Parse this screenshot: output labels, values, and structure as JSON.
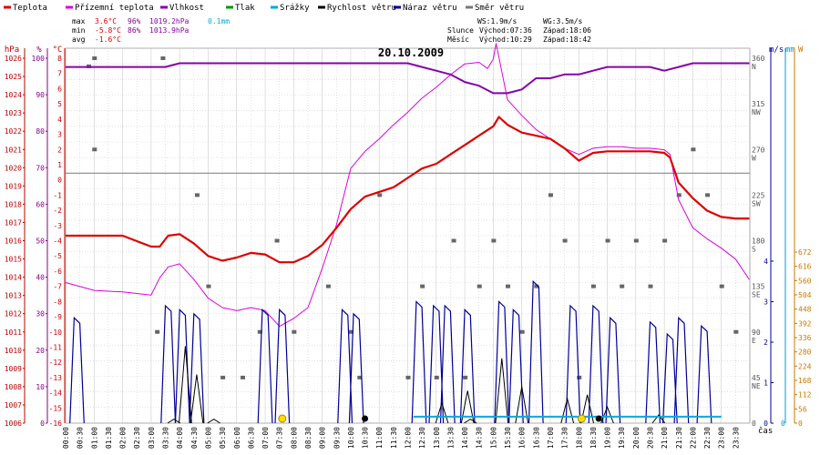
{
  "colors": {
    "teplota": "#dd0000",
    "pocitova": "#dd00dd",
    "vlhkost": "#8800aa",
    "tlak": "#009900",
    "srazky": "#00aadd",
    "vitr": "#000000",
    "naraz": "#000099",
    "smer": "#666666",
    "hpa_axis": "#bb0000",
    "pct_axis": "#880088",
    "c_axis": "#cc0000",
    "wind_axis": "#000099",
    "mm_axis": "#0099cc",
    "w_axis": "#cc7700",
    "grid": "#cccccc",
    "zero": "#888888"
  },
  "legend": [
    {
      "label": "Teplota",
      "color": "#dd0000"
    },
    {
      "label": "Přízemní teplota",
      "color": "#dd00dd"
    },
    {
      "label": "Vlhkost",
      "color": "#8800aa"
    },
    {
      "label": "Tlak",
      "color": "#009900"
    },
    {
      "label": "Srážky",
      "color": "#00aadd"
    },
    {
      "label": "Rychlost větru",
      "color": "#000000"
    },
    {
      "label": "Náraz větru",
      "color": "#000099"
    },
    {
      "label": "Směr větru",
      "color": "#777777"
    }
  ],
  "stats": {
    "max_label": "max",
    "max_temp": "3.6°C",
    "max_hum": "96%",
    "max_press": "1019.2hPa",
    "rain": "0.1mm",
    "min_label": "min",
    "min_temp": "-5.8°C",
    "min_hum": "86%",
    "min_press": "1013.9hPa",
    "avg_label": "avg",
    "avg_temp": "-1.6°C"
  },
  "wind_info": {
    "ws": "WS:1.9m/s",
    "wg": "WG:3.5m/s"
  },
  "sun_moon": {
    "sun_label": "Slunce",
    "sun_rise": "Východ:07:36",
    "sun_set": "Západ:18:06",
    "moon_label": "Měsíc",
    "moon_rise": "Východ:10:29",
    "moon_set": "Západ:18:42"
  },
  "chart_data": {
    "type": "line",
    "title": "20.10.2009",
    "xlabel": "čas",
    "x_ticks": [
      "00:00",
      "00:30",
      "01:00",
      "01:30",
      "02:00",
      "02:30",
      "03:00",
      "03:30",
      "04:00",
      "04:30",
      "05:00",
      "05:30",
      "06:00",
      "06:30",
      "07:00",
      "07:30",
      "08:00",
      "08:30",
      "09:00",
      "09:30",
      "10:00",
      "10:30",
      "11:00",
      "11:30",
      "12:00",
      "12:30",
      "13:00",
      "13:30",
      "14:00",
      "14:30",
      "15:00",
      "15:30",
      "16:00",
      "16:30",
      "17:00",
      "17:30",
      "18:00",
      "18:30",
      "19:00",
      "19:30",
      "20:00",
      "20:30",
      "21:00",
      "21:30",
      "22:00",
      "22:30",
      "23:00",
      "23:30"
    ],
    "axes": {
      "hpa": {
        "label": "hPa",
        "range": [
          1006,
          1026
        ],
        "ticks": [
          "1026",
          "1025",
          "1024",
          "1023",
          "1022",
          "1021",
          "1020",
          "1019",
          "1018",
          "1017",
          "1016",
          "1015",
          "1014",
          "1013",
          "1012",
          "1011",
          "1010",
          "1009",
          "1008",
          "1007",
          "1006"
        ]
      },
      "pct": {
        "label": "%",
        "range": [
          0,
          100
        ],
        "ticks": [
          "100",
          "90",
          "80",
          "70",
          "60",
          "50",
          "40",
          "30",
          "20",
          "10",
          "0"
        ]
      },
      "temp": {
        "label": "°C",
        "range": [
          -16,
          8
        ],
        "ticks": [
          "8",
          "7",
          "6",
          "5",
          "4",
          "3",
          "2",
          "1",
          "0",
          "-1",
          "-2",
          "-3",
          "-4",
          "-5",
          "-6",
          "-7",
          "-8",
          "-9",
          "-10",
          "-11",
          "-12",
          "-13",
          "-14",
          "-15",
          "-16"
        ]
      },
      "dir": {
        "label": "°",
        "range": [
          0,
          360
        ],
        "ticks": [
          "360",
          "315",
          "270",
          "225",
          "180",
          "135",
          "90",
          "45",
          "0"
        ],
        "names": [
          "N",
          "NW",
          "W",
          "SW",
          "S",
          "SE",
          "E",
          "NE",
          ""
        ]
      },
      "wind": {
        "label": "m/s",
        "range": [
          0,
          4
        ],
        "ticks": [
          "4",
          "3",
          "2",
          "1",
          "0"
        ]
      },
      "mm": {
        "label": "mm",
        "range": [
          0,
          1
        ]
      },
      "w": {
        "label": "W",
        "range": [
          0,
          672
        ],
        "ticks": [
          "672",
          "616",
          "560",
          "504",
          "448",
          "392",
          "336",
          "280",
          "224",
          "168",
          "112",
          "56",
          "0"
        ]
      }
    },
    "series": [
      {
        "name": "Teplota",
        "unit": "°C",
        "x": [
          0,
          1,
          2,
          3,
          3.3,
          3.6,
          4,
          4.5,
          5,
          5.5,
          6,
          6.5,
          7,
          7.5,
          8,
          8.5,
          9,
          9.5,
          10,
          10.5,
          11,
          11.5,
          12,
          12.5,
          13,
          13.5,
          14,
          14.5,
          15,
          15.2,
          15.5,
          16,
          16.5,
          17,
          17.5,
          18,
          18.5,
          19,
          19.5,
          20,
          20.5,
          21,
          21.2,
          21.5,
          22,
          22.5,
          23,
          23.5,
          23.98
        ],
        "y": [
          -4,
          -4,
          -4,
          -4.7,
          -4.7,
          -4,
          -3.9,
          -4.5,
          -5.3,
          -5.6,
          -5.4,
          -5.1,
          -5.2,
          -5.7,
          -5.7,
          -5.3,
          -4.6,
          -3.5,
          -2.3,
          -1.5,
          -1.2,
          -0.9,
          -0.3,
          0.3,
          0.6,
          1.2,
          1.8,
          2.4,
          3,
          3.6,
          3.1,
          2.6,
          2.4,
          2.2,
          1.6,
          0.8,
          1.3,
          1.4,
          1.4,
          1.4,
          1.4,
          1.3,
          1.0,
          -0.6,
          -1.6,
          -2.4,
          -2.8,
          -2.9,
          -2.9
        ]
      },
      {
        "name": "Přízemní teplota",
        "unit": "°C",
        "x": [
          0,
          1,
          2,
          3,
          3.3,
          3.6,
          4,
          4.5,
          5,
          5.5,
          6,
          6.5,
          7,
          7.5,
          8,
          8.5,
          9,
          9.5,
          10,
          10.5,
          11,
          11.5,
          12,
          12.5,
          13,
          13.5,
          14,
          14.5,
          14.8,
          15,
          15.1,
          15.3,
          15.5,
          16,
          16.5,
          17,
          17.5,
          18,
          18.5,
          19,
          19.5,
          20,
          20.5,
          21,
          21.2,
          21.5,
          22,
          22.5,
          23,
          23.5,
          23.98
        ],
        "y": [
          -7,
          -7.5,
          -7.6,
          -7.8,
          -6.7,
          -6,
          -5.8,
          -6.8,
          -8,
          -8.6,
          -8.8,
          -8.6,
          -8.8,
          -9.8,
          -9.3,
          -8.6,
          -6.1,
          -3.3,
          0.3,
          1.4,
          2.2,
          3.1,
          3.9,
          4.8,
          5.5,
          6.3,
          7,
          7.1,
          6.7,
          7.3,
          8.3,
          6.5,
          4.7,
          3.7,
          2.8,
          2.2,
          1.6,
          1.2,
          1.6,
          1.7,
          1.7,
          1.6,
          1.6,
          1.5,
          1.2,
          -1.7,
          -3.5,
          -4.2,
          -4.8,
          -5.5,
          -6.8
        ]
      },
      {
        "name": "Vlhkost",
        "unit": "%",
        "x": [
          0,
          1,
          2,
          3,
          3.5,
          4,
          5,
          6,
          7,
          8,
          9,
          9.5,
          10,
          10.5,
          11,
          11.5,
          12,
          12.5,
          13,
          13.5,
          14,
          14.5,
          15,
          15.5,
          16,
          16.5,
          17,
          17.5,
          18,
          18.5,
          19,
          19.5,
          20,
          20.5,
          21,
          21.5,
          22,
          22.5,
          23,
          23.5,
          23.98
        ],
        "y": [
          95,
          95,
          95,
          95,
          95,
          96,
          96,
          96,
          96,
          96,
          96,
          96,
          96,
          96,
          96,
          96,
          96,
          95,
          94,
          93,
          91,
          90,
          88,
          88,
          89,
          92,
          92,
          93,
          93,
          94,
          95,
          95,
          95,
          95,
          94,
          95,
          96,
          96,
          96,
          96,
          96
        ]
      },
      {
        "name": "Rychlost větru",
        "unit": "m/s",
        "x": [
          3.8,
          4.2,
          4.6,
          5.2,
          13.2,
          14.1,
          14.2,
          15.3,
          16.0,
          17.6,
          18.3,
          19.0,
          20.8
        ],
        "y": [
          0.1,
          1.9,
          1.2,
          0.1,
          0.5,
          0.8,
          0.1,
          1.6,
          0.9,
          0.6,
          0.7,
          0.4,
          0.2
        ]
      },
      {
        "name": "Náraz větru",
        "unit": "m/s",
        "x": [
          0.4,
          3.6,
          4.1,
          4.6,
          7.0,
          7.6,
          9.8,
          10.2,
          12.4,
          13.0,
          13.4,
          14.1,
          15.3,
          15.8,
          16.5,
          17.8,
          18.6,
          19.2,
          20.6,
          21.2,
          21.6,
          22.4
        ],
        "y": [
          2.6,
          2.9,
          2.8,
          2.7,
          2.8,
          2.8,
          2.8,
          2.7,
          3.0,
          2.9,
          2.9,
          2.8,
          3.0,
          2.8,
          3.5,
          2.9,
          2.9,
          2.6,
          2.5,
          2.2,
          2.6,
          2.4
        ]
      },
      {
        "name": "Srážky",
        "unit": "mm",
        "x": [
          12.2,
          23.0
        ],
        "y": [
          0.1,
          0.1
        ]
      }
    ]
  }
}
